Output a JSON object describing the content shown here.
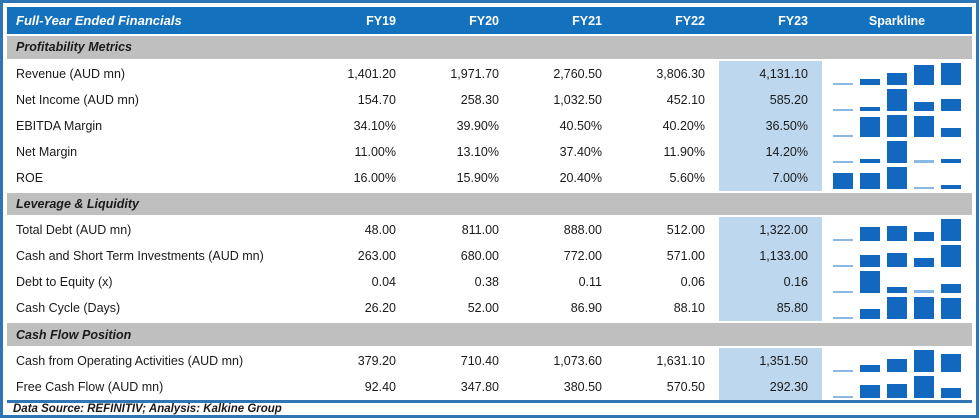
{
  "header": {
    "title": "Full-Year Ended Financials",
    "columns": [
      "FY19",
      "FY20",
      "FY21",
      "FY22",
      "FY23"
    ],
    "sparkline_label": "Sparkline"
  },
  "footer": {
    "text": "Data Source: REFINITIV; Analysis: Kalkine Group"
  },
  "colors": {
    "header_blue": "#1371BE",
    "outer_border_blue": "#2E75B6",
    "section_gray": "#BFBFBF",
    "fy23_highlight": "#BDD7EE",
    "sparkline_bar_blue": "#1268BE",
    "sparkline_min_bar_light": "#8ABAE4"
  },
  "chart_data": {
    "type": "table",
    "title": "Full-Year Ended Financials",
    "columns": [
      "FY19",
      "FY20",
      "FY21",
      "FY22",
      "FY23"
    ],
    "sparkline": {
      "type": "bar",
      "scaling": "min-max per row, bars bottom-aligned"
    },
    "sections": [
      {
        "title": "Profitability Metrics",
        "rows": [
          {
            "label": "Revenue (AUD mn)",
            "display": [
              "1,401.20",
              "1,971.70",
              "2,760.50",
              "3,806.30",
              "4,131.10"
            ],
            "values": [
              1401.2,
              1971.7,
              2760.5,
              3806.3,
              4131.1
            ]
          },
          {
            "label": "Net Income (AUD mn)",
            "display": [
              "154.70",
              "258.30",
              "1,032.50",
              "452.10",
              "585.20"
            ],
            "values": [
              154.7,
              258.3,
              1032.5,
              452.1,
              585.2
            ]
          },
          {
            "label": "EBITDA Margin",
            "display": [
              "34.10%",
              "39.90%",
              "40.50%",
              "40.20%",
              "36.50%"
            ],
            "values": [
              34.1,
              39.9,
              40.5,
              40.2,
              36.5
            ]
          },
          {
            "label": "Net Margin",
            "display": [
              "11.00%",
              "13.10%",
              "37.40%",
              "11.90%",
              "14.20%"
            ],
            "values": [
              11.0,
              13.1,
              37.4,
              11.9,
              14.2
            ]
          },
          {
            "label": "ROE",
            "display": [
              "16.00%",
              "15.90%",
              "20.40%",
              "5.60%",
              "7.00%"
            ],
            "values": [
              16.0,
              15.9,
              20.4,
              5.6,
              7.0
            ]
          }
        ]
      },
      {
        "title": "Leverage & Liquidity",
        "rows": [
          {
            "label": "Total Debt (AUD mn)",
            "display": [
              "48.00",
              "811.00",
              "888.00",
              "512.00",
              "1,322.00"
            ],
            "values": [
              48,
              811,
              888,
              512,
              1322
            ]
          },
          {
            "label": "Cash and Short Term Investments (AUD mn)",
            "display": [
              "263.00",
              "680.00",
              "772.00",
              "571.00",
              "1,133.00"
            ],
            "values": [
              263,
              680,
              772,
              571,
              1133
            ]
          },
          {
            "label": "Debt to Equity (x)",
            "display": [
              "0.04",
              "0.38",
              "0.11",
              "0.06",
              "0.16"
            ],
            "values": [
              0.04,
              0.38,
              0.11,
              0.06,
              0.16
            ]
          },
          {
            "label": "Cash Cycle (Days)",
            "display": [
              "26.20",
              "52.00",
              "86.90",
              "88.10",
              "85.80"
            ],
            "values": [
              26.2,
              52.0,
              86.9,
              88.1,
              85.8
            ]
          }
        ]
      },
      {
        "title": "Cash Flow Position",
        "rows": [
          {
            "label": "Cash from Operating Activities (AUD mn)",
            "display": [
              "379.20",
              "710.40",
              "1,073.60",
              "1,631.10",
              "1,351.50"
            ],
            "values": [
              379.2,
              710.4,
              1073.6,
              1631.1,
              1351.5
            ]
          },
          {
            "label": "Free Cash Flow (AUD mn)",
            "display": [
              "92.40",
              "347.80",
              "380.50",
              "570.50",
              "292.30"
            ],
            "values": [
              92.4,
              347.8,
              380.5,
              570.5,
              292.3
            ]
          }
        ]
      }
    ]
  }
}
